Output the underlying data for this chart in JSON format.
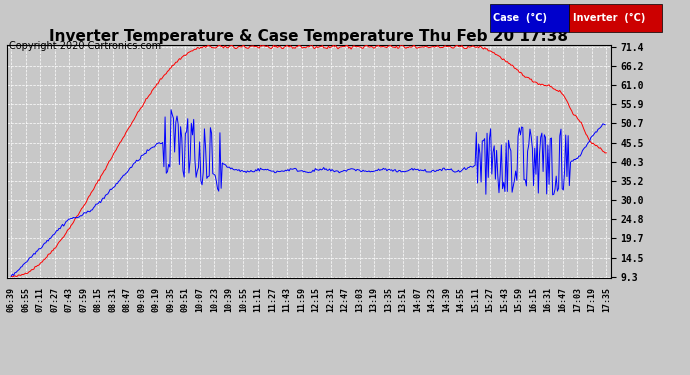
{
  "title": "Inverter Temperature & Case Temperature Thu Feb 20 17:38",
  "copyright": "Copyright 2020 Cartronics.com",
  "legend_case_label": "Case  (°C)",
  "legend_inverter_label": "Inverter  (°C)",
  "legend_case_bg": "#0000cc",
  "legend_inverter_bg": "#cc0000",
  "yticks": [
    9.3,
    14.5,
    19.7,
    24.8,
    30.0,
    35.2,
    40.3,
    45.5,
    50.7,
    55.9,
    61.0,
    66.2,
    71.4
  ],
  "ymin": 9.3,
  "ymax": 71.4,
  "fig_bg_color": "#c8c8c8",
  "plot_bg_color": "#c8c8c8",
  "grid_color": "#ffffff",
  "case_line_color": "#0000ff",
  "inverter_line_color": "#ff0000",
  "title_fontsize": 11,
  "copyright_fontsize": 7,
  "xtick_labels": [
    "06:39",
    "06:55",
    "07:11",
    "07:27",
    "07:43",
    "07:59",
    "08:15",
    "08:31",
    "08:47",
    "09:03",
    "09:19",
    "09:35",
    "09:51",
    "10:07",
    "10:23",
    "10:39",
    "10:55",
    "11:11",
    "11:27",
    "11:43",
    "11:59",
    "12:15",
    "12:31",
    "12:47",
    "13:03",
    "13:19",
    "13:35",
    "13:51",
    "14:07",
    "14:23",
    "14:39",
    "14:55",
    "15:11",
    "15:27",
    "15:43",
    "15:59",
    "16:15",
    "16:31",
    "16:47",
    "17:03",
    "17:19",
    "17:35"
  ]
}
